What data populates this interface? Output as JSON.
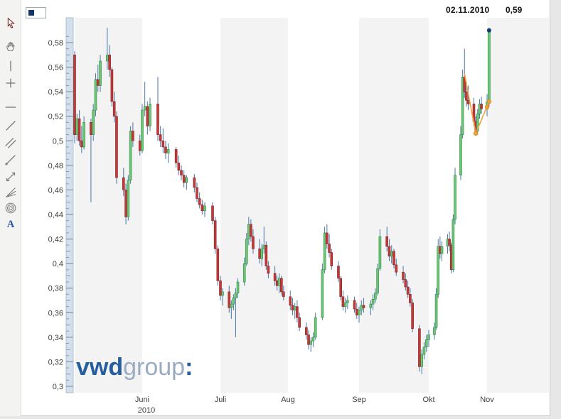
{
  "header": {
    "last_date_label": "02.11.2010",
    "last_price_label": "0,59"
  },
  "legend": {
    "series_marker_color": "#14366b"
  },
  "toolbar": {
    "tools": [
      "pointer",
      "pan-hand",
      "vertical-line",
      "crosshair",
      "horizontal-line",
      "trend-line",
      "parallel-lines",
      "ray-line",
      "expand-arrows",
      "fan-lines",
      "arcs",
      "text"
    ],
    "text_tool_glyph": "A"
  },
  "watermark": {
    "vwd": "vwd",
    "group": "group",
    "colon": ":",
    "vwd_color": "#255e9e",
    "group_color": "#9aabc2"
  },
  "chart_data": {
    "type": "candlestick",
    "y_axis": {
      "tick_values": [
        0.58,
        0.56,
        0.54,
        0.52,
        0.5,
        0.48,
        0.46,
        0.44,
        0.42,
        0.4,
        0.38,
        0.36,
        0.34,
        0.32,
        0.3
      ],
      "tick_labels": [
        "0,58",
        "0,56",
        "0,54",
        "0,52",
        "0,5",
        "0,48",
        "0,46",
        "0,44",
        "0,42",
        "0,4",
        "0,38",
        "0,36",
        "0,34",
        "0,32",
        "0,3"
      ],
      "range_shown": [
        0.3,
        0.58
      ]
    },
    "x_axis": {
      "months": [
        {
          "label": "Juni",
          "date": "2010-06-01",
          "sublabel": "2010"
        },
        {
          "label": "Juli",
          "date": "2010-07-01"
        },
        {
          "label": "Aug",
          "date": "2010-08-01"
        },
        {
          "label": "Sep",
          "date": "2010-09-01"
        },
        {
          "label": "Okt",
          "date": "2010-10-01"
        },
        {
          "label": "Nov",
          "date": "2010-11-01"
        }
      ]
    },
    "bands": [
      {
        "from": "2010-05-01",
        "to": "2010-06-01"
      },
      {
        "from": "2010-07-01",
        "to": "2010-08-01"
      },
      {
        "from": "2010-09-01",
        "to": "2010-10-01"
      },
      {
        "from": "2010-11-01",
        "to": "2010-12-01"
      }
    ],
    "band_color": "#f3f3f3",
    "colors": {
      "up_fill": "#6fc47a",
      "up_stroke": "#2f9040",
      "down_fill": "#c13a3a",
      "down_stroke": "#8c2323",
      "wick": "#4a76a8",
      "trend": "#f0a23a",
      "marker": "#123a78",
      "axis_text": "#3c3c3c",
      "ruler_fill": "#d3dfeb",
      "ruler_border": "#aebfd2",
      "ruler_tick": "#7f98b2"
    },
    "candles_start_date": "2010-05-03",
    "candles_ohlc": [
      [
        0.57,
        0.573,
        0.498,
        0.505
      ],
      [
        0.505,
        0.522,
        0.5,
        0.518
      ],
      [
        0.518,
        0.525,
        0.496,
        0.5
      ],
      [
        0.5,
        0.512,
        0.49,
        0.495
      ],
      [
        0.495,
        0.52,
        0.493,
        0.515
      ],
      [
        0.515,
        0.518,
        0.45,
        0.505
      ],
      [
        0.505,
        0.53,
        0.5,
        0.525
      ],
      [
        0.525,
        0.555,
        0.52,
        0.55
      ],
      [
        0.55,
        0.562,
        0.54,
        0.545
      ],
      [
        0.545,
        0.57,
        0.54,
        0.565
      ],
      [
        0.565,
        0.592,
        0.558,
        0.57
      ],
      [
        0.57,
        0.578,
        0.552,
        0.558
      ],
      [
        0.558,
        0.56,
        0.528,
        0.532
      ],
      [
        0.532,
        0.54,
        0.515,
        0.52
      ],
      [
        0.52,
        0.524,
        0.465,
        0.47
      ],
      [
        0.47,
        0.478,
        0.455,
        0.46
      ],
      [
        0.46,
        0.465,
        0.432,
        0.438
      ],
      [
        0.438,
        0.472,
        0.435,
        0.468
      ],
      [
        0.468,
        0.512,
        0.465,
        0.508
      ],
      [
        0.508,
        0.515,
        0.495,
        0.5
      ],
      [
        0.5,
        0.505,
        0.488,
        0.492
      ],
      [
        0.492,
        0.53,
        0.49,
        0.525
      ],
      [
        0.525,
        0.548,
        0.52,
        0.528
      ],
      [
        0.528,
        0.532,
        0.505,
        0.512
      ],
      [
        0.512,
        0.535,
        0.508,
        0.53
      ],
      [
        0.53,
        0.552,
        0.5,
        0.505
      ],
      [
        0.505,
        0.512,
        0.495,
        0.5
      ],
      [
        0.5,
        0.51,
        0.49,
        0.495
      ],
      [
        0.495,
        0.5,
        0.485,
        0.49
      ],
      [
        0.49,
        0.498,
        0.482,
        0.493
      ],
      [
        0.493,
        0.495,
        0.478,
        0.482
      ],
      [
        0.482,
        0.488,
        0.472,
        0.476
      ],
      [
        0.476,
        0.48,
        0.468,
        0.472
      ],
      [
        0.472,
        0.476,
        0.462,
        0.466
      ],
      [
        0.466,
        0.472,
        0.46,
        0.47
      ],
      [
        0.47,
        0.473,
        0.458,
        0.462
      ],
      [
        0.462,
        0.466,
        0.45,
        0.453
      ],
      [
        0.453,
        0.458,
        0.445,
        0.448
      ],
      [
        0.448,
        0.452,
        0.44,
        0.443
      ],
      [
        0.443,
        0.45,
        0.438,
        0.447
      ],
      [
        0.447,
        0.45,
        0.432,
        0.435
      ],
      [
        0.435,
        0.438,
        0.408,
        0.412
      ],
      [
        0.412,
        0.415,
        0.382,
        0.386
      ],
      [
        0.386,
        0.39,
        0.37,
        0.374
      ],
      [
        0.374,
        0.38,
        0.366,
        0.377
      ],
      [
        0.377,
        0.382,
        0.36,
        0.364
      ],
      [
        0.364,
        0.37,
        0.355,
        0.367
      ],
      [
        0.367,
        0.375,
        0.362,
        0.372
      ],
      [
        0.372,
        0.38,
        0.34,
        0.376
      ],
      [
        0.376,
        0.388,
        0.372,
        0.385
      ],
      [
        0.385,
        0.405,
        0.382,
        0.4
      ],
      [
        0.4,
        0.425,
        0.398,
        0.42
      ],
      [
        0.42,
        0.438,
        0.415,
        0.432
      ],
      [
        0.432,
        0.436,
        0.418,
        0.422
      ],
      [
        0.422,
        0.428,
        0.408,
        0.412
      ],
      [
        0.412,
        0.42,
        0.4,
        0.404
      ],
      [
        0.404,
        0.416,
        0.398,
        0.412
      ],
      [
        0.412,
        0.43,
        0.408,
        0.415
      ],
      [
        0.415,
        0.418,
        0.395,
        0.398
      ],
      [
        0.398,
        0.402,
        0.388,
        0.392
      ],
      [
        0.392,
        0.398,
        0.382,
        0.386
      ],
      [
        0.386,
        0.39,
        0.378,
        0.382
      ],
      [
        0.382,
        0.392,
        0.376,
        0.388
      ],
      [
        0.388,
        0.39,
        0.374,
        0.377
      ],
      [
        0.377,
        0.382,
        0.37,
        0.373
      ],
      [
        0.373,
        0.378,
        0.362,
        0.366
      ],
      [
        0.366,
        0.372,
        0.358,
        0.362
      ],
      [
        0.362,
        0.368,
        0.355,
        0.365
      ],
      [
        0.365,
        0.37,
        0.352,
        0.356
      ],
      [
        0.356,
        0.36,
        0.345,
        0.348
      ],
      [
        0.348,
        0.352,
        0.338,
        0.342
      ],
      [
        0.342,
        0.346,
        0.33,
        0.334
      ],
      [
        0.334,
        0.34,
        0.328,
        0.337
      ],
      [
        0.337,
        0.344,
        0.332,
        0.34
      ],
      [
        0.34,
        0.36,
        0.338,
        0.356
      ],
      [
        0.356,
        0.4,
        0.354,
        0.395
      ],
      [
        0.395,
        0.43,
        0.392,
        0.425
      ],
      [
        0.425,
        0.432,
        0.412,
        0.416
      ],
      [
        0.416,
        0.424,
        0.405,
        0.409
      ],
      [
        0.409,
        0.412,
        0.395,
        0.398
      ],
      [
        0.398,
        0.402,
        0.385,
        0.388
      ],
      [
        0.388,
        0.39,
        0.37,
        0.373
      ],
      [
        0.373,
        0.378,
        0.362,
        0.365
      ],
      [
        0.365,
        0.372,
        0.36,
        0.368
      ],
      [
        0.368,
        0.374,
        0.363,
        0.37
      ],
      [
        0.37,
        0.373,
        0.36,
        0.363
      ],
      [
        0.363,
        0.368,
        0.355,
        0.358
      ],
      [
        0.358,
        0.365,
        0.352,
        0.362
      ],
      [
        0.362,
        0.37,
        0.358,
        0.366
      ],
      [
        0.366,
        0.372,
        0.36,
        0.364
      ],
      [
        0.364,
        0.37,
        0.358,
        0.367
      ],
      [
        0.367,
        0.375,
        0.362,
        0.371
      ],
      [
        0.371,
        0.38,
        0.368,
        0.376
      ],
      [
        0.376,
        0.4,
        0.374,
        0.396
      ],
      [
        0.396,
        0.428,
        0.394,
        0.422
      ],
      [
        0.422,
        0.43,
        0.41,
        0.414
      ],
      [
        0.414,
        0.42,
        0.402,
        0.406
      ],
      [
        0.406,
        0.415,
        0.4,
        0.41
      ],
      [
        0.41,
        0.412,
        0.396,
        0.399
      ],
      [
        0.399,
        0.404,
        0.39,
        0.393
      ],
      [
        0.393,
        0.398,
        0.384,
        0.387
      ],
      [
        0.387,
        0.392,
        0.378,
        0.381
      ],
      [
        0.381,
        0.386,
        0.372,
        0.375
      ],
      [
        0.375,
        0.38,
        0.365,
        0.368
      ],
      [
        0.368,
        0.371,
        0.344,
        0.347
      ],
      [
        0.347,
        0.35,
        0.312,
        0.316
      ],
      [
        0.316,
        0.33,
        0.31,
        0.326
      ],
      [
        0.326,
        0.336,
        0.322,
        0.332
      ],
      [
        0.332,
        0.342,
        0.328,
        0.338
      ],
      [
        0.338,
        0.346,
        0.332,
        0.342
      ],
      [
        0.342,
        0.352,
        0.338,
        0.348
      ],
      [
        0.348,
        0.38,
        0.346,
        0.375
      ],
      [
        0.375,
        0.42,
        0.372,
        0.414
      ],
      [
        0.414,
        0.422,
        0.404,
        0.408
      ],
      [
        0.408,
        0.418,
        0.402,
        0.414
      ],
      [
        0.414,
        0.424,
        0.408,
        0.42
      ],
      [
        0.42,
        0.426,
        0.41,
        0.415
      ],
      [
        0.415,
        0.417,
        0.392,
        0.395
      ],
      [
        0.395,
        0.44,
        0.393,
        0.436
      ],
      [
        0.436,
        0.478,
        0.432,
        0.472
      ],
      [
        0.472,
        0.512,
        0.468,
        0.505
      ],
      [
        0.505,
        0.558,
        0.502,
        0.552
      ],
      [
        0.552,
        0.575,
        0.535,
        0.54
      ],
      [
        0.54,
        0.548,
        0.528,
        0.533
      ],
      [
        0.533,
        0.545,
        0.525,
        0.53
      ],
      [
        0.53,
        0.535,
        0.512,
        0.516
      ],
      [
        0.516,
        0.52,
        0.504,
        0.508
      ],
      [
        0.508,
        0.526,
        0.505,
        0.522
      ],
      [
        0.522,
        0.534,
        0.518,
        0.53
      ],
      [
        0.53,
        0.536,
        0.522,
        0.526
      ],
      [
        0.526,
        0.538,
        0.52,
        0.532
      ],
      [
        0.532,
        0.592,
        0.528,
        0.59
      ]
    ],
    "trend_line": {
      "points": [
        {
          "date": "2010-10-20",
          "price": 0.555
        },
        {
          "date": "2010-10-26",
          "price": 0.506
        },
        {
          "date": "2010-11-02",
          "price": 0.532
        }
      ],
      "dots": [
        {
          "date": "2010-10-26",
          "price": 0.506
        },
        {
          "date": "2010-11-01",
          "price": 0.5275
        },
        {
          "date": "2010-11-02",
          "price": 0.532
        }
      ]
    },
    "last_marker": {
      "date": "2010-11-02",
      "price": 0.59
    }
  }
}
